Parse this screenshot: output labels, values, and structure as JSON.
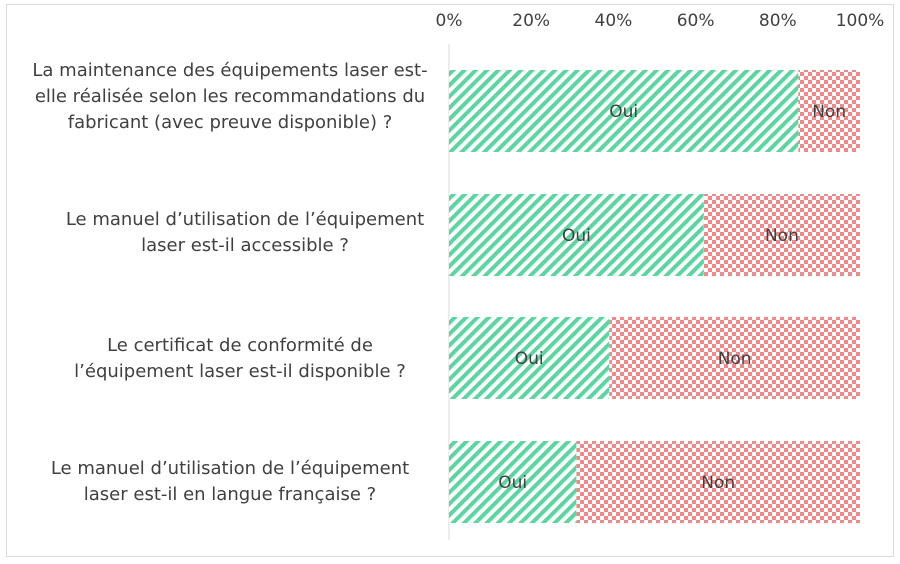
{
  "chart_data": {
    "type": "bar",
    "orientation": "horizontal-stacked-100",
    "categories": [
      "La maintenance des équipements laser est-elle réalisée selon les recommandations du fabricant (avec preuve disponible) ?",
      "Le manuel d’utilisation de l’équipement laser est-il accessible ?",
      "Le certificat de conformité de l’équipement laser est-il disponible ?",
      "Le manuel d’utilisation de l’équipement laser est-il en langue française ?"
    ],
    "series": [
      {
        "name": "Oui",
        "values": [
          85,
          62,
          39,
          31
        ],
        "color": "#5cd6a0",
        "pattern": "diagonal-stripes"
      },
      {
        "name": "Non",
        "values": [
          15,
          38,
          61,
          69
        ],
        "color": "#f08a8a",
        "pattern": "checkerboard"
      }
    ],
    "xlim": [
      0,
      100
    ],
    "xticks": [
      "0%",
      "20%",
      "40%",
      "60%",
      "80%",
      "100%"
    ],
    "axis_position": "top",
    "grid": false,
    "legend": "none"
  }
}
